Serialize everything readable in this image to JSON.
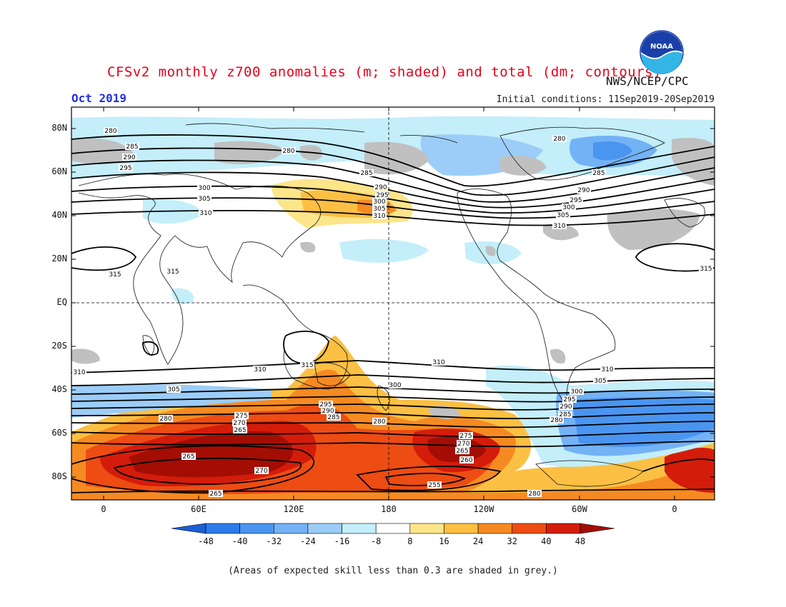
{
  "header": {
    "title": "CFSv2 monthly z700 anomalies (m; shaded) and total (dm; contours)",
    "agency": "NWS/NCEP/CPC",
    "valid_month": "Oct 2019",
    "initial_conditions": "Initial conditions: 11Sep2019-20Sep2019"
  },
  "logo": {
    "icon": "noaa-logo-icon",
    "text": "NOAA"
  },
  "axes": {
    "lat_labels": [
      "80N",
      "60N",
      "40N",
      "20N",
      "EQ",
      "20S",
      "40S",
      "60S",
      "80S"
    ],
    "lon_labels": [
      "0",
      "60E",
      "120E",
      "180",
      "120W",
      "60W",
      "0"
    ]
  },
  "colorbar": {
    "ticks": [
      "-48",
      "-40",
      "-32",
      "-24",
      "-16",
      "-8",
      "8",
      "16",
      "24",
      "32",
      "40",
      "48"
    ],
    "colors": [
      "#1a5fd6",
      "#2d7ae8",
      "#4a95f0",
      "#73b2f5",
      "#9ccdf8",
      "#c3eefa",
      "#ffffff",
      "#fde58a",
      "#fbc043",
      "#f68a22",
      "#ed4c13",
      "#d41c0a",
      "#a30d04"
    ]
  },
  "contour_labels": [
    "280",
    "285",
    "290",
    "295",
    "300",
    "305",
    "310",
    "315",
    "275",
    "270",
    "265",
    "260",
    "255"
  ],
  "skill_note": "(Areas of expected skill less than 0.3 are shaded in grey.)",
  "colors": {
    "title": "#e8001c",
    "month": "#2233dd",
    "skill_grey": "#c0c0c0"
  }
}
